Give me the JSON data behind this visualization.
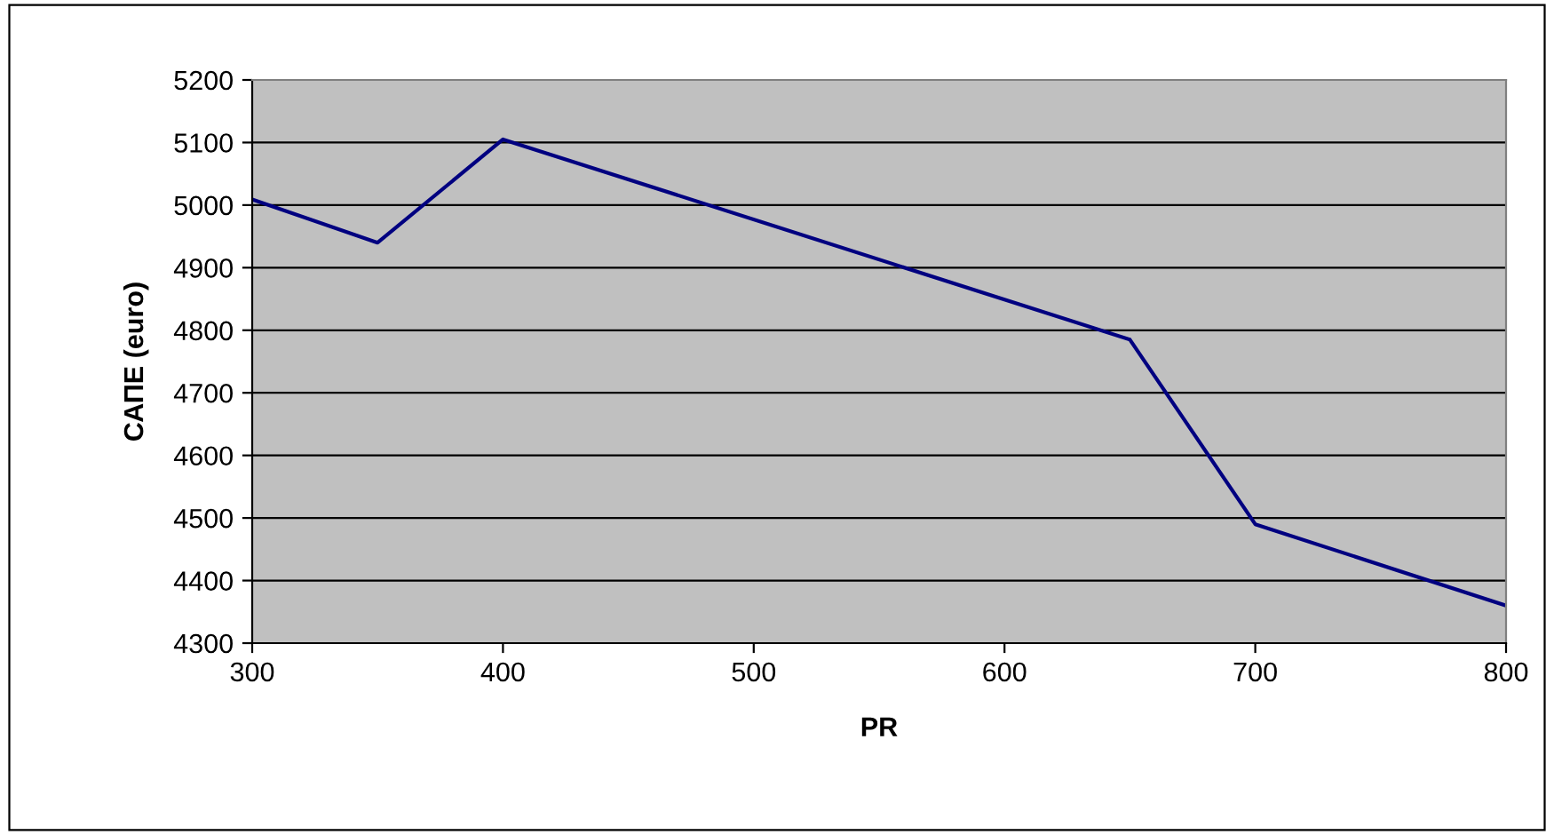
{
  "chart_data": {
    "type": "line",
    "xlabel": "PR",
    "ylabel": "САПЕ (euro)",
    "x": [
      300,
      350,
      400,
      650,
      700,
      800
    ],
    "series": [
      {
        "color": "#000080",
        "values": [
          5009,
          4940,
          5105,
          4785,
          4490,
          4360
        ]
      }
    ],
    "xlim": [
      300,
      800
    ],
    "xticks": [
      300,
      400,
      500,
      600,
      700,
      800
    ],
    "ylim": [
      4300,
      5200
    ],
    "yticks": [
      4300,
      4400,
      4500,
      4600,
      4700,
      4800,
      4900,
      5000,
      5100,
      5200
    ],
    "grid": "y",
    "marker": "none",
    "line_style": "solid"
  }
}
